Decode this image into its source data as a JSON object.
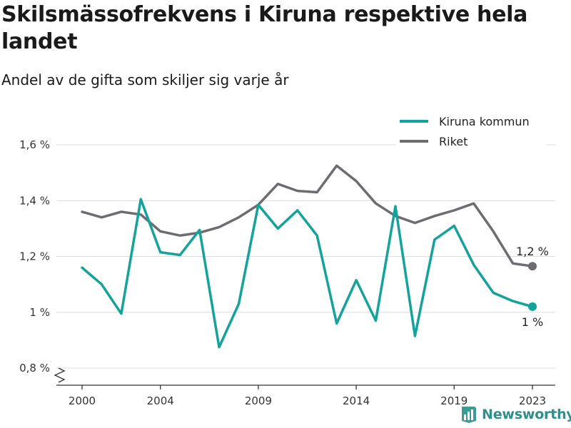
{
  "title": "Skilsmässofrekvens i Kiruna respektive hela landet",
  "subtitle": "Andel av de gifta som skiljer sig varje år",
  "brand": "Newsworthy",
  "chart_data": {
    "type": "line",
    "x": [
      2000,
      2001,
      2002,
      2003,
      2004,
      2005,
      2006,
      2007,
      2008,
      2009,
      2010,
      2011,
      2012,
      2013,
      2014,
      2015,
      2016,
      2017,
      2018,
      2019,
      2020,
      2021,
      2022,
      2023
    ],
    "x_ticks": [
      2000,
      2004,
      2009,
      2014,
      2019,
      2023
    ],
    "ylim": [
      0.8,
      1.6
    ],
    "y_ticks": [
      0.8,
      1.0,
      1.2,
      1.4,
      1.6
    ],
    "y_tick_labels": [
      "0,8 %",
      "1 %",
      "1,2 %",
      "1,4 %",
      "1,6 %"
    ],
    "grid": true,
    "legend_position": "top-right",
    "series": [
      {
        "name": "Kiruna kommun",
        "color": "#14a39b",
        "values": [
          1.16,
          1.1,
          0.995,
          1.405,
          1.215,
          1.205,
          1.295,
          0.875,
          1.03,
          1.385,
          1.3,
          1.365,
          1.275,
          0.96,
          1.115,
          0.97,
          1.38,
          0.915,
          1.26,
          1.31,
          1.17,
          1.07,
          1.04,
          1.02
        ],
        "end_label": "1 %"
      },
      {
        "name": "Riket",
        "color": "#6e6c70",
        "values": [
          1.36,
          1.34,
          1.36,
          1.35,
          1.29,
          1.275,
          1.285,
          1.305,
          1.34,
          1.385,
          1.46,
          1.435,
          1.43,
          1.525,
          1.47,
          1.39,
          1.345,
          1.32,
          1.345,
          1.365,
          1.39,
          1.29,
          1.175,
          1.165
        ],
        "end_label": "1,2 %"
      }
    ]
  }
}
